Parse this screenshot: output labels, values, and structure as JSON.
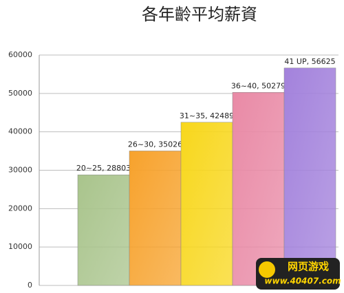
{
  "chart_data": {
    "type": "bar",
    "title": "各年齡平均薪資",
    "categories": [
      null,
      null,
      null,
      null,
      null
    ],
    "values": [
      28803,
      35026,
      42489,
      50279,
      56625
    ],
    "value_labels": [
      "20~25, 28803",
      "26~30, 35026",
      "31~35, 42489",
      "36~40, 50279",
      "41 UP, 56625"
    ],
    "colors": [
      "#a9c48c",
      "#f7a22c",
      "#f8d71c",
      "#e98aa6",
      "#a382dc"
    ],
    "ylim": [
      0,
      60000
    ],
    "yticks": [
      0,
      10000,
      20000,
      30000,
      40000,
      50000,
      60000
    ],
    "grid": true
  },
  "watermark": {
    "title": "网页游戏",
    "url": "www.40407.com"
  }
}
